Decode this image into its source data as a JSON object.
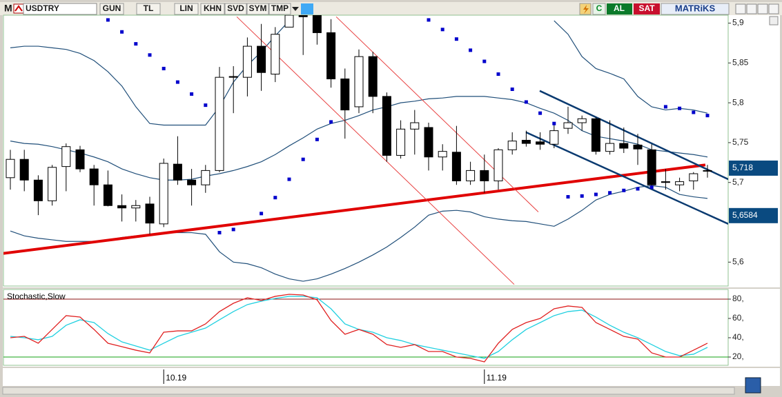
{
  "toolbar": {
    "logo": "M",
    "symbol": "USDTRY",
    "buttons": [
      "GUN",
      "TL",
      "LIN",
      "KHN",
      "SVD",
      "SYM",
      "TMP"
    ],
    "refresh": "C",
    "buy": "AL",
    "sell": "SAT",
    "brand": "MATRiKS"
  },
  "chart_data": [
    {
      "type": "candlestick",
      "categories": [
        null,
        null,
        null,
        null,
        null,
        null,
        null,
        null,
        null,
        null,
        null,
        "10.19",
        null,
        null,
        null,
        null,
        null,
        null,
        null,
        null,
        null,
        null,
        null,
        null,
        null,
        null,
        null,
        null,
        null,
        null,
        null,
        null,
        null,
        null,
        "11.19",
        null,
        null,
        null,
        null,
        null,
        null,
        null,
        null,
        null,
        null,
        null,
        null,
        null,
        null,
        null,
        null
      ],
      "open": [
        5.706,
        5.729,
        5.703,
        5.677,
        5.72,
        5.741,
        5.717,
        5.697,
        5.671,
        5.668,
        5.673,
        5.648,
        5.723,
        5.703,
        5.697,
        5.715,
        5.833,
        5.832,
        5.871,
        5.836,
        5.895,
        5.91,
        5.91,
        5.888,
        5.83,
        5.795,
        5.858,
        5.808,
        5.734,
        5.767,
        5.769,
        5.732,
        5.738,
        5.702,
        5.715,
        5.702,
        5.741,
        5.753,
        5.751,
        5.748,
        5.768,
        5.775,
        5.78,
        5.739,
        5.749,
        5.747,
        5.741,
        5.701,
        5.697,
        5.702,
        5.715
      ],
      "high": [
        5.741,
        5.741,
        5.709,
        5.722,
        5.749,
        5.746,
        5.722,
        5.715,
        5.685,
        5.678,
        5.682,
        5.73,
        5.758,
        5.717,
        5.722,
        5.845,
        5.846,
        5.882,
        5.899,
        5.895,
        5.912,
        5.912,
        5.912,
        5.905,
        5.843,
        5.867,
        5.864,
        5.813,
        5.778,
        5.791,
        5.775,
        5.748,
        5.771,
        5.726,
        5.735,
        5.743,
        5.763,
        5.765,
        5.763,
        5.775,
        5.795,
        5.784,
        5.782,
        5.778,
        5.769,
        5.761,
        5.748,
        5.717,
        5.706,
        5.713,
        5.722
      ],
      "low": [
        5.691,
        5.689,
        5.659,
        5.671,
        5.689,
        5.713,
        5.671,
        5.67,
        5.651,
        5.651,
        5.635,
        5.644,
        5.697,
        5.671,
        5.687,
        5.713,
        5.787,
        5.808,
        5.815,
        5.826,
        5.895,
        5.86,
        5.873,
        5.819,
        5.755,
        5.787,
        5.787,
        5.726,
        5.73,
        5.735,
        5.715,
        5.715,
        5.697,
        5.697,
        5.687,
        5.691,
        5.735,
        5.745,
        5.741,
        5.743,
        5.761,
        5.765,
        5.735,
        5.735,
        5.737,
        5.722,
        5.694,
        5.691,
        5.689,
        5.691,
        5.706
      ],
      "close": [
        5.729,
        5.703,
        5.677,
        5.719,
        5.745,
        5.717,
        5.697,
        5.671,
        5.668,
        5.671,
        5.649,
        5.724,
        5.703,
        5.697,
        5.715,
        5.832,
        5.832,
        5.871,
        5.838,
        5.886,
        5.91,
        5.908,
        5.888,
        5.83,
        5.791,
        5.858,
        5.808,
        5.734,
        5.767,
        5.775,
        5.732,
        5.739,
        5.702,
        5.715,
        5.702,
        5.741,
        5.752,
        5.749,
        5.748,
        5.765,
        5.775,
        5.78,
        5.739,
        5.749,
        5.743,
        5.742,
        5.697,
        5.7,
        5.701,
        5.711,
        5.715
      ],
      "up_color": "#ffffff",
      "down_color": "#000000",
      "ylim": [
        5.57,
        5.91
      ],
      "yticks": [
        {
          "value": 5.9,
          "label": "5,9"
        },
        {
          "value": 5.85,
          "label": "5,85"
        },
        {
          "value": 5.8,
          "label": "5,8"
        },
        {
          "value": 5.75,
          "label": "5,75"
        },
        {
          "value": 5.7,
          "label": "5,7"
        },
        {
          "value": 5.6,
          "label": "5,6"
        }
      ],
      "overlays": [
        {
          "color": "#1f4e79",
          "values": [
            5.869,
            5.871,
            5.871,
            5.869,
            5.867,
            5.862,
            5.853,
            5.839,
            5.821,
            5.795,
            5.774,
            5.772,
            5.772,
            5.772,
            5.772,
            5.795,
            5.826,
            5.847,
            5.864,
            5.884,
            5.903,
            null,
            null,
            null,
            null,
            null,
            null,
            null,
            null,
            null,
            null,
            null,
            null,
            null,
            null,
            null,
            null,
            null,
            null,
            5.903,
            5.886,
            5.858,
            5.843,
            5.837,
            5.83,
            5.808,
            5.795,
            5.791,
            5.793,
            5.791,
            5.787
          ]
        },
        {
          "color": "#1f4e79",
          "values": [
            5.752,
            5.749,
            5.748,
            5.745,
            5.741,
            5.737,
            5.732,
            5.726,
            5.717,
            5.711,
            5.706,
            5.703,
            5.703,
            5.704,
            5.708,
            5.711,
            5.715,
            5.72,
            5.726,
            5.735,
            5.746,
            5.756,
            5.767,
            5.774,
            5.778,
            5.784,
            5.791,
            5.795,
            5.8,
            5.802,
            5.805,
            5.806,
            5.808,
            5.808,
            5.808,
            5.806,
            5.804,
            5.8,
            5.793,
            5.787,
            5.778,
            5.765,
            5.758,
            5.755,
            5.752,
            5.748,
            5.741,
            5.739,
            5.737,
            5.735,
            5.732
          ]
        },
        {
          "color": "#1f4e79",
          "values": [
            5.639,
            5.633,
            5.63,
            5.628,
            5.626,
            5.626,
            5.626,
            5.628,
            5.631,
            5.633,
            5.635,
            5.637,
            5.637,
            5.637,
            5.635,
            5.613,
            5.6,
            5.598,
            5.593,
            5.585,
            5.579,
            5.576,
            5.579,
            5.585,
            5.592,
            5.6,
            5.609,
            5.619,
            5.631,
            5.644,
            5.659,
            5.664,
            5.665,
            5.663,
            5.657,
            5.654,
            5.652,
            5.651,
            5.648,
            5.645,
            5.654,
            5.665,
            5.678,
            5.685,
            5.689,
            5.694,
            5.696,
            5.694,
            5.685,
            5.682,
            5.68
          ]
        }
      ],
      "sar": {
        "color": "#0000cc",
        "values": [
          null,
          null,
          null,
          null,
          null,
          null,
          null,
          5.904,
          5.889,
          5.874,
          5.86,
          5.843,
          5.826,
          5.811,
          5.797,
          5.637,
          5.641,
          null,
          5.661,
          5.681,
          5.704,
          5.729,
          5.754,
          5.776,
          null,
          null,
          null,
          null,
          null,
          null,
          5.904,
          5.892,
          5.88,
          5.866,
          5.852,
          5.836,
          5.817,
          5.801,
          5.787,
          5.774,
          5.682,
          5.683,
          5.685,
          5.687,
          5.69,
          5.692,
          5.694,
          5.795,
          5.793,
          5.788,
          5.784
        ]
      },
      "trendlines": [
        {
          "color": "#e00000",
          "width": 4,
          "x": [
            -0.5,
            49.85
          ],
          "values": [
            5.611,
            5.722
          ]
        },
        {
          "color": "#e84040",
          "width": 1,
          "x": [
            16.24,
            36.14
          ],
          "values": [
            5.908,
            5.572
          ]
        },
        {
          "color": "#e84040",
          "width": 1,
          "x": [
            23.37,
            37.87
          ],
          "values": [
            5.908,
            5.663
          ]
        },
        {
          "color": "#0a3a70",
          "width": 2.5,
          "x": [
            37.97,
            51.49
          ],
          "values": [
            5.815,
            5.704
          ]
        },
        {
          "color": "#0a3a70",
          "width": 2.5,
          "x": [
            36.98,
            51.49
          ],
          "values": [
            5.763,
            5.648
          ]
        }
      ],
      "price_labels": [
        {
          "value": 5.718,
          "label": "5,718",
          "color": "#0a4a80"
        },
        {
          "value": 5.6584,
          "label": "5,6584",
          "color": "#0a4a80"
        }
      ]
    },
    {
      "type": "line",
      "title": "Stochastic,Slow",
      "series": [
        {
          "color": "#e02020",
          "values": [
            40,
            41.4,
            34.3,
            48.6,
            62.9,
            61.4,
            48.6,
            34.3,
            30.7,
            27.1,
            24.3,
            45.7,
            47.1,
            47.1,
            54.3,
            67.1,
            75.7,
            81.4,
            78.6,
            82.9,
            85,
            84.3,
            79.3,
            57.9,
            43.6,
            48.6,
            43.6,
            32.9,
            30,
            32.9,
            25.7,
            25.7,
            20,
            18.6,
            15,
            34.3,
            48.6,
            55.7,
            60,
            70,
            72.9,
            71.4,
            55.7,
            48.6,
            41.4,
            38.6,
            24.3,
            20,
            20,
            27.1,
            34.3
          ]
        },
        {
          "color": "#20d0e0",
          "values": [
            41.4,
            40,
            37.9,
            41.4,
            52.9,
            58.6,
            55.7,
            44.3,
            35.7,
            31.4,
            27.1,
            34.3,
            41.4,
            45.7,
            50,
            58.6,
            67.1,
            74.3,
            77.9,
            80.7,
            82.9,
            82.9,
            81.4,
            70,
            54.3,
            48.6,
            45.7,
            40,
            37.1,
            32.9,
            30,
            27.1,
            24.3,
            21.4,
            18.6,
            25.7,
            37.9,
            48.6,
            55.7,
            62.9,
            67.1,
            68.6,
            61.4,
            52.9,
            45.7,
            40,
            32.9,
            25.7,
            21.4,
            22.9,
            30
          ]
        }
      ],
      "ylim": [
        12,
        90
      ],
      "yticks": [
        {
          "value": 80,
          "label": "80,"
        },
        {
          "value": 60,
          "label": "60,"
        },
        {
          "value": 40,
          "label": "40,"
        },
        {
          "value": 20,
          "label": "20,"
        }
      ],
      "levels": [
        {
          "value": 80,
          "color": "#8b1010"
        },
        {
          "value": 20,
          "color": "#10a010"
        }
      ]
    }
  ]
}
